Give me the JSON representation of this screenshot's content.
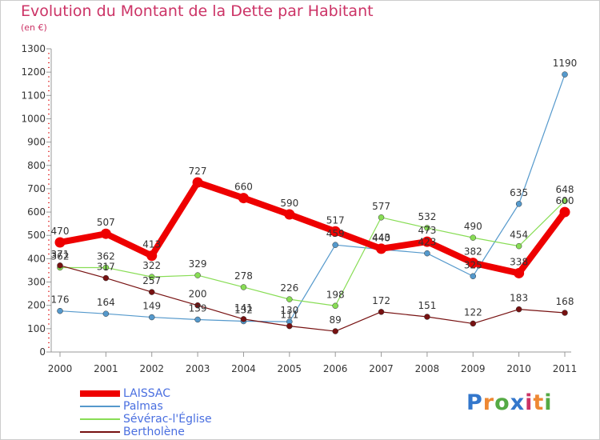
{
  "title": "Evolution du Montant de la Dette par Habitant",
  "subtitle": "(en €)",
  "logo_text": "Proxiti",
  "chart_data": {
    "type": "line",
    "title": "Evolution du Montant de la Dette par Habitant",
    "subtitle": "(en €)",
    "x": [
      "2000",
      "2001",
      "2002",
      "2003",
      "2004",
      "2005",
      "2006",
      "2007",
      "2008",
      "2009",
      "2010",
      "2011"
    ],
    "ylim": [
      0,
      1300
    ],
    "yticks": [
      "0",
      "100",
      "200",
      "300",
      "400",
      "500",
      "600",
      "700",
      "800",
      "900",
      "1000",
      "1100",
      "1200",
      "1300"
    ],
    "grid": false,
    "legend_position": "bottom-left",
    "series": [
      {
        "name": "LAISSAC",
        "color": "#ee0000",
        "values": [
          470,
          507,
          413,
          727,
          660,
          590,
          517,
          443,
          473,
          382,
          338,
          600
        ]
      },
      {
        "name": "Palmas",
        "color": "#5599cc",
        "values": [
          176,
          164,
          149,
          139,
          132,
          130,
          459,
          440,
          423,
          325,
          635,
          1190
        ]
      },
      {
        "name": "Sévérac-l'Église",
        "color": "#88dd55",
        "values": [
          362,
          362,
          322,
          329,
          278,
          226,
          198,
          577,
          532,
          490,
          454,
          648
        ]
      },
      {
        "name": "Bertholène",
        "color": "#771111",
        "values": [
          371,
          317,
          257,
          200,
          141,
          111,
          89,
          172,
          151,
          122,
          183,
          168
        ]
      }
    ]
  }
}
